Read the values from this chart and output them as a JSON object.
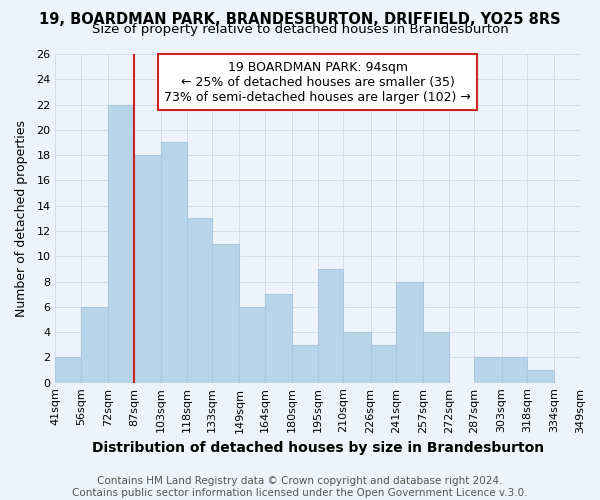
{
  "title": "19, BOARDMAN PARK, BRANDESBURTON, DRIFFIELD, YO25 8RS",
  "subtitle": "Size of property relative to detached houses in Brandesburton",
  "xlabel": "Distribution of detached houses by size in Brandesburton",
  "ylabel": "Number of detached properties",
  "footer_line1": "Contains HM Land Registry data © Crown copyright and database right 2024.",
  "footer_line2": "Contains public sector information licensed under the Open Government Licence v.3.0.",
  "categories": [
    "41sqm",
    "56sqm",
    "72sqm",
    "87sqm",
    "103sqm",
    "118sqm",
    "133sqm",
    "149sqm",
    "164sqm",
    "180sqm",
    "195sqm",
    "210sqm",
    "226sqm",
    "241sqm",
    "257sqm",
    "272sqm",
    "287sqm",
    "303sqm",
    "318sqm",
    "334sqm",
    "349sqm"
  ],
  "all_values": [
    2,
    6,
    22,
    18,
    19,
    13,
    11,
    6,
    7,
    3,
    9,
    4,
    3,
    8,
    4,
    0,
    2,
    2,
    1,
    0
  ],
  "bar_color": "#b8d4e8",
  "bar_edge_color": "#aac8e0",
  "grid_color": "#d0d8e8",
  "red_line_sqm": 87,
  "annotation_text": "19 BOARDMAN PARK: 94sqm\n← 25% of detached houses are smaller (35)\n73% of semi-detached houses are larger (102) →",
  "annotation_box_color": "#ffffff",
  "annotation_box_edge": "#cc2222",
  "ylim": [
    0,
    26
  ],
  "yticks": [
    0,
    2,
    4,
    6,
    8,
    10,
    12,
    14,
    16,
    18,
    20,
    22,
    24,
    26
  ],
  "background_color": "#eef2fa",
  "title_fontsize": 10.5,
  "subtitle_fontsize": 9.5,
  "xlabel_fontsize": 10,
  "ylabel_fontsize": 9,
  "tick_fontsize": 8,
  "annotation_fontsize": 9,
  "footer_fontsize": 7.5
}
